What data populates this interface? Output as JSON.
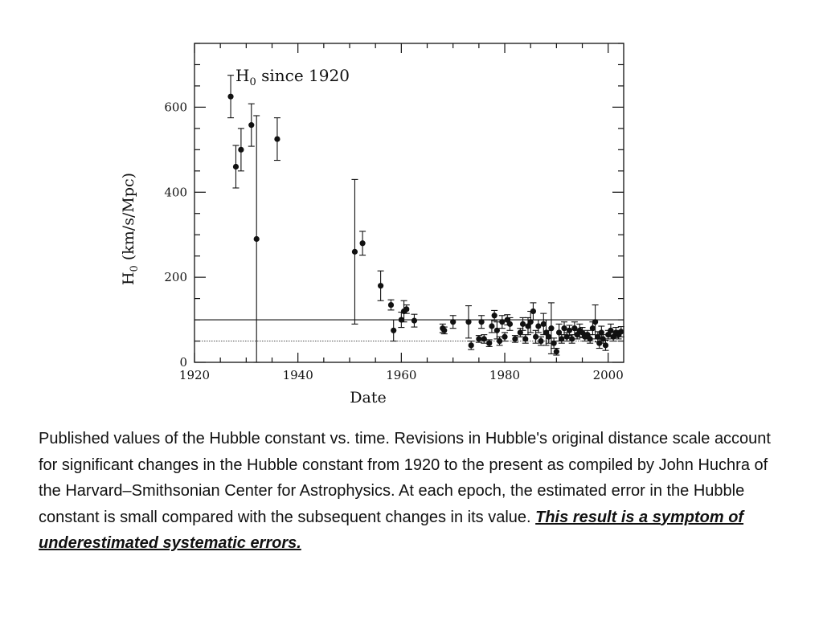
{
  "chart_data": {
    "type": "scatter",
    "title": "H",
    "title_subscript": "0",
    "title_suffix": " since 1920",
    "xlabel": "Date",
    "ylabel_main": "H",
    "ylabel_subscript": "0",
    "ylabel_units": " (km/s/Mpc)",
    "xlim": [
      1920,
      2003
    ],
    "ylim": [
      0,
      750
    ],
    "xticks": [
      1920,
      1940,
      1960,
      1980,
      2000
    ],
    "yticks": [
      0,
      200,
      400,
      600
    ],
    "grid": false,
    "reference_lines": [
      {
        "y": 100,
        "style": "solid"
      },
      {
        "y": 50,
        "style": "dotted"
      }
    ],
    "points": [
      {
        "x": 1927,
        "y": 625,
        "err": 50
      },
      {
        "x": 1928,
        "y": 460,
        "err": 50
      },
      {
        "x": 1929,
        "y": 500,
        "err": 50
      },
      {
        "x": 1931,
        "y": 558,
        "err": 50
      },
      {
        "x": 1932,
        "y": 290,
        "err": 290
      },
      {
        "x": 1936,
        "y": 525,
        "err": 50
      },
      {
        "x": 1951,
        "y": 260,
        "err": 170
      },
      {
        "x": 1952.5,
        "y": 280,
        "err": 28
      },
      {
        "x": 1956,
        "y": 180,
        "err": 35
      },
      {
        "x": 1958,
        "y": 135,
        "err": 12
      },
      {
        "x": 1958.5,
        "y": 75,
        "err": 25
      },
      {
        "x": 1960,
        "y": 100,
        "err": 18
      },
      {
        "x": 1960.5,
        "y": 120,
        "err": 25
      },
      {
        "x": 1961,
        "y": 125,
        "err": 10
      },
      {
        "x": 1962.5,
        "y": 98,
        "err": 15
      },
      {
        "x": 1968,
        "y": 80,
        "err": 10
      },
      {
        "x": 1968.3,
        "y": 75,
        "err": 8
      },
      {
        "x": 1970,
        "y": 95,
        "err": 15
      },
      {
        "x": 1973,
        "y": 95,
        "err": 38
      },
      {
        "x": 1973.5,
        "y": 40,
        "err": 10
      },
      {
        "x": 1975,
        "y": 55,
        "err": 8
      },
      {
        "x": 1975.5,
        "y": 95,
        "err": 15
      },
      {
        "x": 1976,
        "y": 55,
        "err": 10
      },
      {
        "x": 1977,
        "y": 45,
        "err": 8
      },
      {
        "x": 1977.5,
        "y": 85,
        "err": 15
      },
      {
        "x": 1978,
        "y": 110,
        "err": 12
      },
      {
        "x": 1978.5,
        "y": 75,
        "err": 20
      },
      {
        "x": 1979,
        "y": 50,
        "err": 10
      },
      {
        "x": 1979.5,
        "y": 95,
        "err": 15
      },
      {
        "x": 1980,
        "y": 60,
        "err": 10
      },
      {
        "x": 1980.5,
        "y": 100,
        "err": 12
      },
      {
        "x": 1981,
        "y": 90,
        "err": 15
      },
      {
        "x": 1982,
        "y": 55,
        "err": 8
      },
      {
        "x": 1983,
        "y": 70,
        "err": 10
      },
      {
        "x": 1983.5,
        "y": 90,
        "err": 15
      },
      {
        "x": 1984,
        "y": 55,
        "err": 10
      },
      {
        "x": 1984.5,
        "y": 85,
        "err": 20
      },
      {
        "x": 1985,
        "y": 95,
        "err": 25
      },
      {
        "x": 1985.5,
        "y": 120,
        "err": 20
      },
      {
        "x": 1986,
        "y": 60,
        "err": 15
      },
      {
        "x": 1986.5,
        "y": 85,
        "err": 15
      },
      {
        "x": 1987,
        "y": 50,
        "err": 10
      },
      {
        "x": 1987.5,
        "y": 90,
        "err": 25
      },
      {
        "x": 1988,
        "y": 70,
        "err": 30
      },
      {
        "x": 1988.5,
        "y": 60,
        "err": 15
      },
      {
        "x": 1989,
        "y": 80,
        "err": 60
      },
      {
        "x": 1989.5,
        "y": 45,
        "err": 12
      },
      {
        "x": 1990,
        "y": 25,
        "err": 8
      },
      {
        "x": 1990.5,
        "y": 70,
        "err": 20
      },
      {
        "x": 1991,
        "y": 55,
        "err": 10
      },
      {
        "x": 1991.5,
        "y": 80,
        "err": 15
      },
      {
        "x": 1992,
        "y": 60,
        "err": 10
      },
      {
        "x": 1992.5,
        "y": 75,
        "err": 12
      },
      {
        "x": 1993,
        "y": 55,
        "err": 10
      },
      {
        "x": 1993.5,
        "y": 80,
        "err": 15
      },
      {
        "x": 1994,
        "y": 65,
        "err": 10
      },
      {
        "x": 1994.5,
        "y": 75,
        "err": 15
      },
      {
        "x": 1995,
        "y": 70,
        "err": 12
      },
      {
        "x": 1995.5,
        "y": 60,
        "err": 10
      },
      {
        "x": 1996,
        "y": 65,
        "err": 10
      },
      {
        "x": 1996.5,
        "y": 55,
        "err": 10
      },
      {
        "x": 1997,
        "y": 80,
        "err": 15
      },
      {
        "x": 1997.5,
        "y": 95,
        "err": 40
      },
      {
        "x": 1998,
        "y": 60,
        "err": 12
      },
      {
        "x": 1998.3,
        "y": 45,
        "err": 12
      },
      {
        "x": 1998.7,
        "y": 70,
        "err": 15
      },
      {
        "x": 1999,
        "y": 55,
        "err": 10
      },
      {
        "x": 1999.5,
        "y": 40,
        "err": 12
      },
      {
        "x": 2000,
        "y": 65,
        "err": 10
      },
      {
        "x": 2000.5,
        "y": 75,
        "err": 15
      },
      {
        "x": 2001,
        "y": 60,
        "err": 10
      },
      {
        "x": 2001.5,
        "y": 70,
        "err": 12
      },
      {
        "x": 2002,
        "y": 65,
        "err": 10
      },
      {
        "x": 2002.5,
        "y": 72,
        "err": 12
      }
    ]
  },
  "caption": {
    "text": "Published values of the Hubble constant vs. time. Revisions in Hubble's original distance scale account for significant changes in the Hubble constant from 1920 to the present as compiled by John Huchra of the Harvard–Smithsonian Center for Astrophysics. At each epoch, the estimated error in the Hubble constant is small compared with the subsequent changes in its value. ",
    "emphasis": "This result is a symptom of underestimated systematic errors."
  }
}
